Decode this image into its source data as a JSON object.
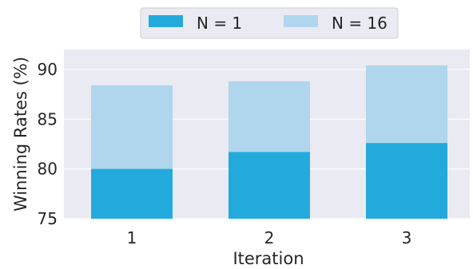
{
  "chart_data": {
    "type": "bar",
    "stacked_overlay": true,
    "categories": [
      "1",
      "2",
      "3"
    ],
    "series": [
      {
        "name": "N = 1",
        "values": [
          80.0,
          81.7,
          82.6
        ],
        "color": "#22aadd"
      },
      {
        "name": "N = 16",
        "values": [
          88.4,
          88.8,
          90.4
        ],
        "color": "#afd6ec"
      }
    ],
    "xlabel": "Iteration",
    "ylabel": "Winning Rates (%)",
    "ylim": [
      75,
      92
    ],
    "yticks": [
      75,
      80,
      85,
      90
    ],
    "grid": true,
    "legend_position": "top-center",
    "background_color": "#eaeaf2"
  }
}
